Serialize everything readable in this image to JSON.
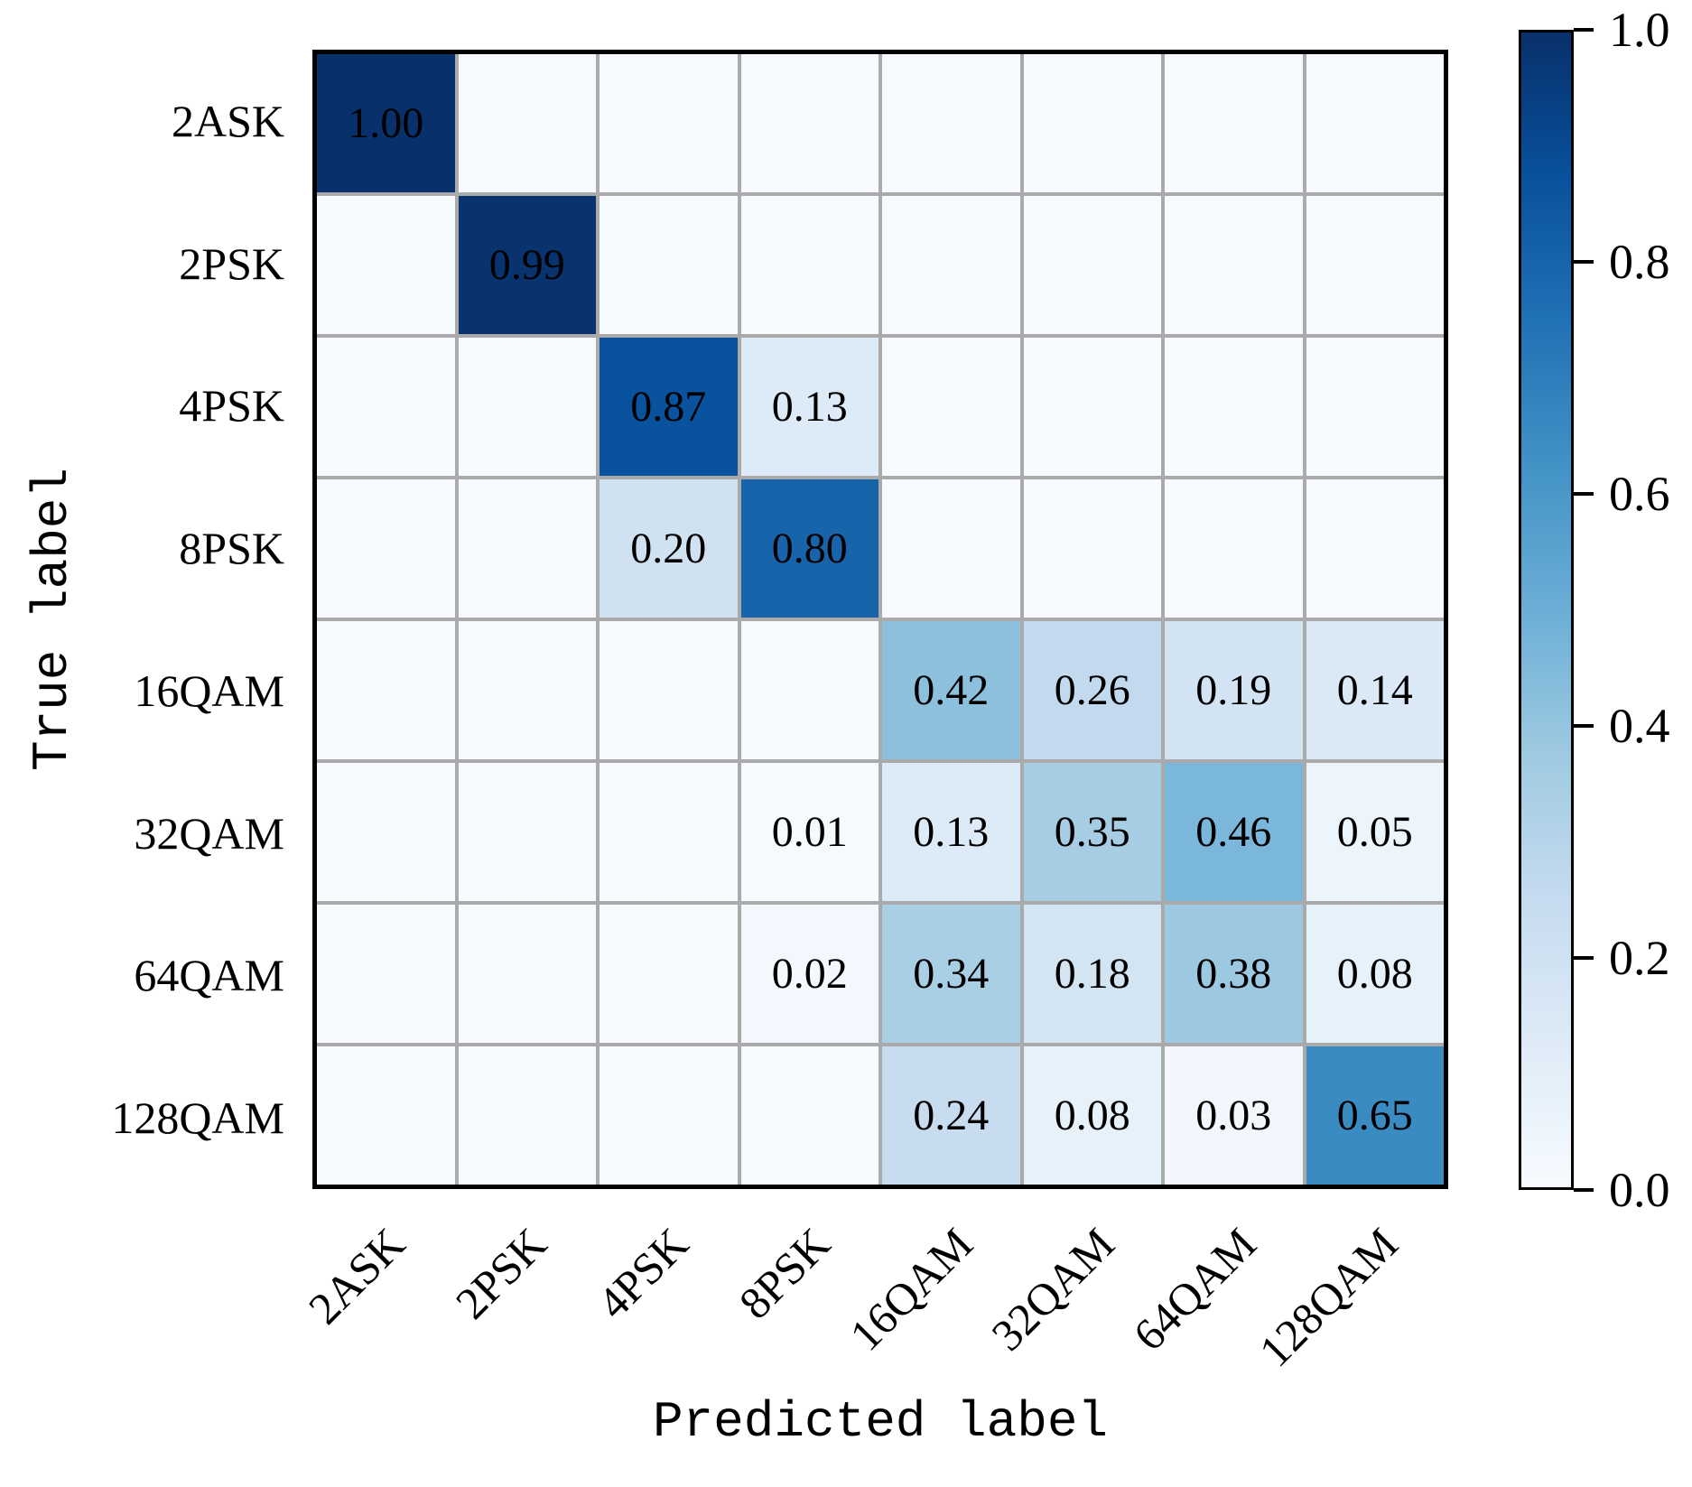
{
  "chart_data": {
    "type": "heatmap",
    "title": "",
    "xlabel": "Predicted label",
    "ylabel": "True label",
    "x_categories": [
      "2ASK",
      "2PSK",
      "4PSK",
      "8PSK",
      "16QAM",
      "32QAM",
      "64QAM",
      "128QAM"
    ],
    "y_categories": [
      "2ASK",
      "2PSK",
      "4PSK",
      "8PSK",
      "16QAM",
      "32QAM",
      "64QAM",
      "128QAM"
    ],
    "matrix": [
      [
        1.0,
        0,
        0,
        0,
        0,
        0,
        0,
        0
      ],
      [
        0,
        0.99,
        0,
        0,
        0,
        0,
        0,
        0
      ],
      [
        0,
        0,
        0.87,
        0.13,
        0,
        0,
        0,
        0
      ],
      [
        0,
        0,
        0.2,
        0.8,
        0,
        0,
        0,
        0
      ],
      [
        0,
        0,
        0,
        0,
        0.42,
        0.26,
        0.19,
        0.14
      ],
      [
        0,
        0,
        0,
        0.01,
        0.13,
        0.35,
        0.46,
        0.05
      ],
      [
        0,
        0,
        0,
        0.02,
        0.34,
        0.18,
        0.38,
        0.08
      ],
      [
        0,
        0,
        0,
        0,
        0.24,
        0.08,
        0.03,
        0.65
      ]
    ],
    "annotation_format": "0.00 (two decimals, zero cells left blank)",
    "colormap": "Blues",
    "vmin": 0.0,
    "vmax": 1.0,
    "colorbar": {
      "ticks_top_to_bottom": [
        "1.0",
        "0.8",
        "0.6",
        "0.4",
        "0.2",
        "0.0"
      ],
      "position": "right"
    },
    "grid": true
  },
  "colors": {
    "gridline": "#aaaaaa",
    "border": "#000000",
    "background": "#ffffff",
    "annotation_text": "#000000",
    "cmap_low": "#f7fbff",
    "cmap_high": "#08306b"
  }
}
